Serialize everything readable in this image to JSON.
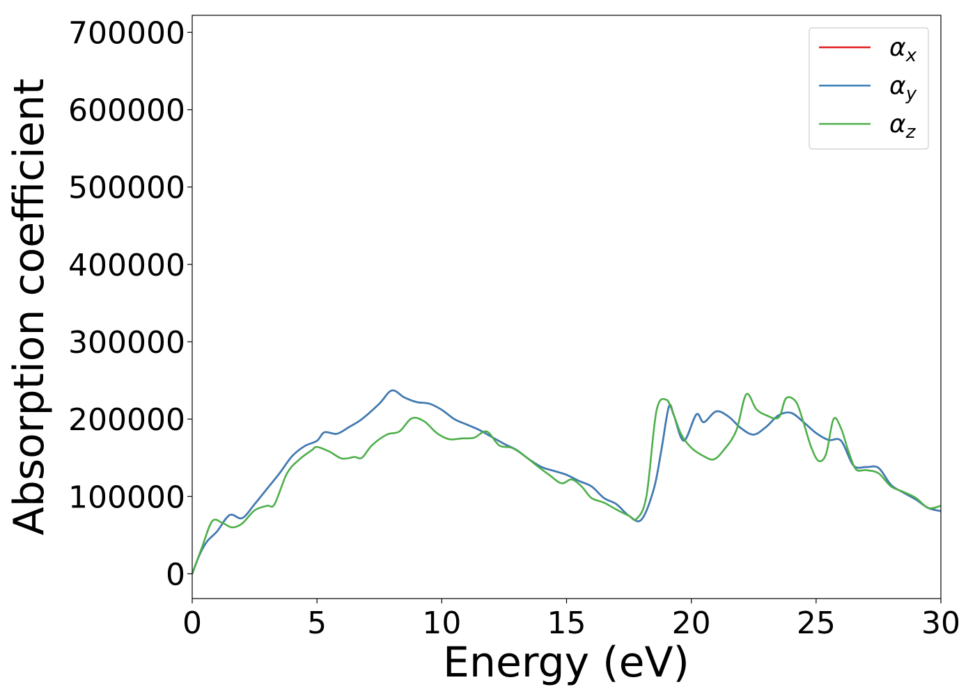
{
  "chart_data": {
    "type": "line",
    "title": "",
    "xlabel": "Energy (eV)",
    "ylabel": "Absorption coefficient",
    "xlim": [
      0,
      30
    ],
    "ylim": [
      -32000,
      722000
    ],
    "x_ticks": [
      0,
      5,
      10,
      15,
      20,
      25,
      30
    ],
    "x_tick_labels": [
      "0",
      "5",
      "10",
      "15",
      "20",
      "25",
      "30"
    ],
    "y_ticks": [
      0,
      100000,
      200000,
      300000,
      400000,
      500000,
      600000,
      700000
    ],
    "y_tick_labels": [
      "0",
      "100000",
      "200000",
      "300000",
      "400000",
      "500000",
      "600000",
      "700000"
    ],
    "grid": false,
    "legend_position": "top-right",
    "series": [
      {
        "name": "αx",
        "symbol": "α",
        "subscript": "x",
        "color": "#e41a1c",
        "points": [
          [
            0,
            0
          ],
          [
            0.3,
            25000
          ],
          [
            0.6,
            42000
          ],
          [
            1.0,
            55000
          ],
          [
            1.5,
            76000
          ],
          [
            2.0,
            72000
          ],
          [
            2.5,
            90000
          ],
          [
            3.0,
            110000
          ],
          [
            3.5,
            130000
          ],
          [
            4.0,
            152000
          ],
          [
            4.5,
            165000
          ],
          [
            5.0,
            172000
          ],
          [
            5.3,
            183000
          ],
          [
            5.8,
            181000
          ],
          [
            6.3,
            190000
          ],
          [
            6.8,
            200000
          ],
          [
            7.5,
            220000
          ],
          [
            8.0,
            237000
          ],
          [
            8.5,
            228000
          ],
          [
            9.0,
            222000
          ],
          [
            9.5,
            220000
          ],
          [
            10.0,
            212000
          ],
          [
            10.5,
            200000
          ],
          [
            11.0,
            193000
          ],
          [
            11.5,
            186000
          ],
          [
            12.0,
            177000
          ],
          [
            12.5,
            168000
          ],
          [
            13.0,
            160000
          ],
          [
            13.5,
            148000
          ],
          [
            14.0,
            138000
          ],
          [
            14.5,
            133000
          ],
          [
            15.0,
            128000
          ],
          [
            15.5,
            120000
          ],
          [
            16.0,
            113000
          ],
          [
            16.5,
            98000
          ],
          [
            17.0,
            90000
          ],
          [
            17.5,
            75000
          ],
          [
            18.0,
            70000
          ],
          [
            18.5,
            110000
          ],
          [
            18.8,
            160000
          ],
          [
            19.1,
            216000
          ],
          [
            19.3,
            205000
          ],
          [
            19.7,
            172000
          ],
          [
            20.2,
            206000
          ],
          [
            20.5,
            196000
          ],
          [
            21.0,
            210000
          ],
          [
            21.5,
            203000
          ],
          [
            22.0,
            188000
          ],
          [
            22.5,
            180000
          ],
          [
            23.0,
            190000
          ],
          [
            23.5,
            205000
          ],
          [
            24.0,
            208000
          ],
          [
            24.5,
            196000
          ],
          [
            25.0,
            182000
          ],
          [
            25.5,
            173000
          ],
          [
            26.0,
            172000
          ],
          [
            26.5,
            140000
          ],
          [
            27.0,
            138000
          ],
          [
            27.5,
            137000
          ],
          [
            28.0,
            115000
          ],
          [
            28.5,
            105000
          ],
          [
            29.0,
            96000
          ],
          [
            29.5,
            85000
          ],
          [
            30.0,
            81000
          ]
        ]
      },
      {
        "name": "αy",
        "symbol": "α",
        "subscript": "y",
        "color": "#377eb8",
        "points": [
          [
            0,
            0
          ],
          [
            0.3,
            25000
          ],
          [
            0.6,
            42000
          ],
          [
            1.0,
            55000
          ],
          [
            1.5,
            76000
          ],
          [
            2.0,
            72000
          ],
          [
            2.5,
            90000
          ],
          [
            3.0,
            110000
          ],
          [
            3.5,
            130000
          ],
          [
            4.0,
            152000
          ],
          [
            4.5,
            165000
          ],
          [
            5.0,
            172000
          ],
          [
            5.3,
            183000
          ],
          [
            5.8,
            181000
          ],
          [
            6.3,
            190000
          ],
          [
            6.8,
            200000
          ],
          [
            7.5,
            220000
          ],
          [
            8.0,
            237000
          ],
          [
            8.5,
            228000
          ],
          [
            9.0,
            222000
          ],
          [
            9.5,
            220000
          ],
          [
            10.0,
            212000
          ],
          [
            10.5,
            200000
          ],
          [
            11.0,
            193000
          ],
          [
            11.5,
            186000
          ],
          [
            12.0,
            177000
          ],
          [
            12.5,
            168000
          ],
          [
            13.0,
            160000
          ],
          [
            13.5,
            148000
          ],
          [
            14.0,
            138000
          ],
          [
            14.5,
            133000
          ],
          [
            15.0,
            128000
          ],
          [
            15.5,
            120000
          ],
          [
            16.0,
            113000
          ],
          [
            16.5,
            98000
          ],
          [
            17.0,
            90000
          ],
          [
            17.5,
            75000
          ],
          [
            18.0,
            70000
          ],
          [
            18.5,
            110000
          ],
          [
            18.8,
            160000
          ],
          [
            19.1,
            216000
          ],
          [
            19.3,
            205000
          ],
          [
            19.7,
            172000
          ],
          [
            20.2,
            206000
          ],
          [
            20.5,
            196000
          ],
          [
            21.0,
            210000
          ],
          [
            21.5,
            203000
          ],
          [
            22.0,
            188000
          ],
          [
            22.5,
            180000
          ],
          [
            23.0,
            190000
          ],
          [
            23.5,
            205000
          ],
          [
            24.0,
            208000
          ],
          [
            24.5,
            196000
          ],
          [
            25.0,
            182000
          ],
          [
            25.5,
            173000
          ],
          [
            26.0,
            172000
          ],
          [
            26.5,
            140000
          ],
          [
            27.0,
            138000
          ],
          [
            27.5,
            137000
          ],
          [
            28.0,
            115000
          ],
          [
            28.5,
            105000
          ],
          [
            29.0,
            96000
          ],
          [
            29.5,
            85000
          ],
          [
            30.0,
            81000
          ]
        ]
      },
      {
        "name": "αz",
        "symbol": "α",
        "subscript": "z",
        "color": "#4daf4a",
        "points": [
          [
            0,
            0
          ],
          [
            0.4,
            35000
          ],
          [
            0.8,
            68000
          ],
          [
            1.2,
            66000
          ],
          [
            1.6,
            60000
          ],
          [
            2.0,
            65000
          ],
          [
            2.5,
            82000
          ],
          [
            3.0,
            88000
          ],
          [
            3.3,
            90000
          ],
          [
            3.8,
            130000
          ],
          [
            4.3,
            148000
          ],
          [
            4.8,
            160000
          ],
          [
            5.0,
            164000
          ],
          [
            5.5,
            158000
          ],
          [
            6.0,
            149000
          ],
          [
            6.5,
            151000
          ],
          [
            6.8,
            150000
          ],
          [
            7.2,
            166000
          ],
          [
            7.8,
            180000
          ],
          [
            8.3,
            184000
          ],
          [
            8.8,
            201000
          ],
          [
            9.3,
            197000
          ],
          [
            9.8,
            182000
          ],
          [
            10.3,
            174000
          ],
          [
            10.8,
            175000
          ],
          [
            11.3,
            176000
          ],
          [
            11.8,
            184000
          ],
          [
            12.3,
            166000
          ],
          [
            12.8,
            163000
          ],
          [
            13.3,
            153000
          ],
          [
            13.8,
            140000
          ],
          [
            14.3,
            128000
          ],
          [
            14.8,
            117000
          ],
          [
            15.2,
            122000
          ],
          [
            15.6,
            113000
          ],
          [
            16.0,
            98000
          ],
          [
            16.5,
            92000
          ],
          [
            17.0,
            83000
          ],
          [
            17.5,
            75000
          ],
          [
            17.8,
            71000
          ],
          [
            18.2,
            100000
          ],
          [
            18.6,
            210000
          ],
          [
            19.0,
            225000
          ],
          [
            19.3,
            205000
          ],
          [
            19.6,
            180000
          ],
          [
            20.0,
            163000
          ],
          [
            20.5,
            152000
          ],
          [
            20.9,
            148000
          ],
          [
            21.3,
            160000
          ],
          [
            21.8,
            185000
          ],
          [
            22.2,
            232000
          ],
          [
            22.6,
            213000
          ],
          [
            23.0,
            205000
          ],
          [
            23.5,
            202000
          ],
          [
            23.8,
            227000
          ],
          [
            24.2,
            222000
          ],
          [
            24.5,
            195000
          ],
          [
            24.8,
            164000
          ],
          [
            25.1,
            146000
          ],
          [
            25.4,
            155000
          ],
          [
            25.7,
            200000
          ],
          [
            26.0,
            188000
          ],
          [
            26.3,
            158000
          ],
          [
            26.6,
            135000
          ],
          [
            27.0,
            134000
          ],
          [
            27.5,
            130000
          ],
          [
            28.0,
            113000
          ],
          [
            28.5,
            106000
          ],
          [
            29.0,
            98000
          ],
          [
            29.5,
            85000
          ],
          [
            30.0,
            88000
          ]
        ]
      }
    ]
  }
}
